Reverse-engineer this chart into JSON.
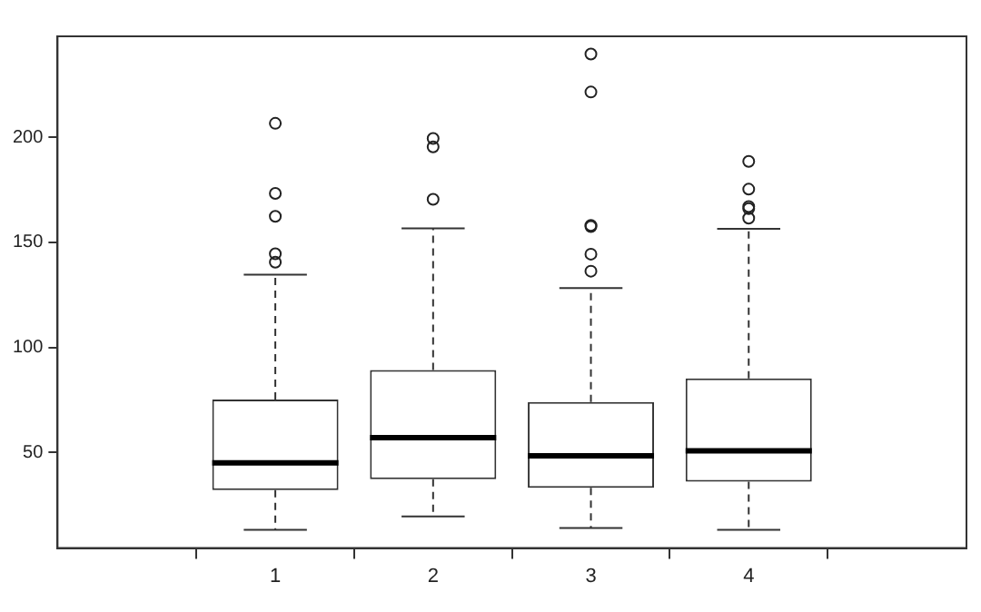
{
  "chart_data": {
    "type": "box",
    "categories": [
      "1",
      "2",
      "3",
      "4"
    ],
    "boxes": [
      {
        "low": 13.3,
        "q1": 32.2,
        "median": 45.1,
        "q3": 75.2,
        "high": 134.6,
        "outliers": [
          206.6,
          173.3,
          162.4,
          144.6,
          140.6
        ]
      },
      {
        "low": 19.6,
        "q1": 37.4,
        "median": 57.1,
        "q3": 89.3,
        "high": 156.7,
        "outliers": [
          199.4,
          195.4,
          170.5
        ]
      },
      {
        "low": 14.1,
        "q1": 33.3,
        "median": 48.5,
        "q3": 74.1,
        "high": 128.3,
        "outliers": [
          239.6,
          221.5,
          158.1,
          157.5,
          144.4,
          136.3
        ]
      },
      {
        "low": 13.3,
        "q1": 36.2,
        "median": 50.9,
        "q3": 85.3,
        "high": 156.4,
        "outliers": [
          188.5,
          175.3,
          167,
          166,
          161.5
        ]
      }
    ],
    "ylim": [
      4.6,
      248
    ],
    "yticks": [
      50,
      100,
      150,
      200
    ],
    "grid": false,
    "legend": false,
    "marker": "circle"
  }
}
